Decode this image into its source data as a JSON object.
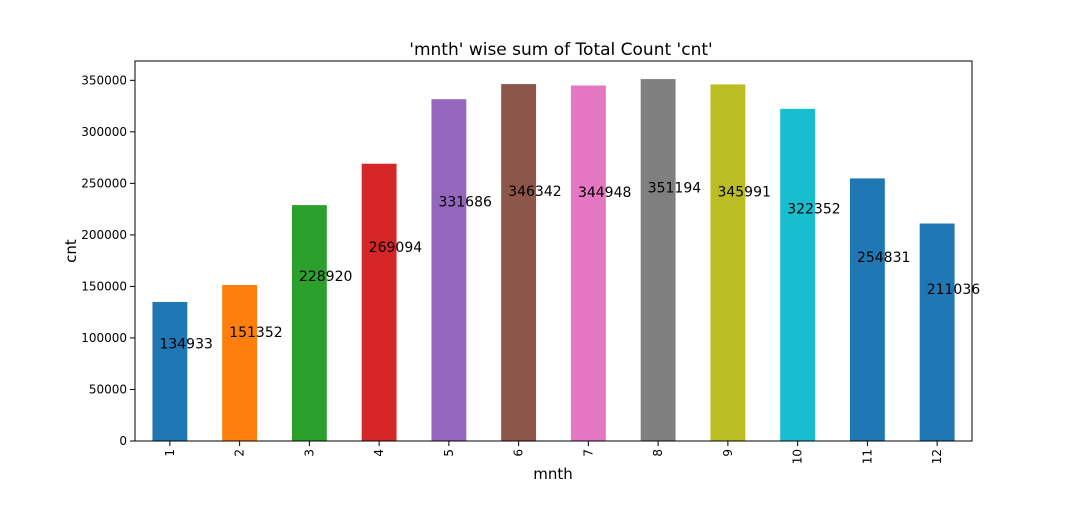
{
  "chart_data": {
    "type": "bar",
    "title": "'mnth' wise sum of Total Count 'cnt'",
    "xlabel": "mnth",
    "ylabel": "cnt",
    "categories": [
      "1",
      "2",
      "3",
      "4",
      "5",
      "6",
      "7",
      "8",
      "9",
      "10",
      "11",
      "12"
    ],
    "values": [
      134933,
      151352,
      228920,
      269094,
      331686,
      346342,
      344948,
      351194,
      345991,
      322352,
      254831,
      211036
    ],
    "data_labels": [
      "134933",
      "151352",
      "228920",
      "269094",
      "331686",
      "346342",
      "344948",
      "351194",
      "345991",
      "322352",
      "254831",
      "211036"
    ],
    "colors": [
      "#1f77b4",
      "#ff7f0e",
      "#2ca02c",
      "#d62728",
      "#9467bd",
      "#8c564b",
      "#e377c2",
      "#7f7f7f",
      "#bcbd22",
      "#17becf",
      "#1f77b4",
      "#1f77b4"
    ],
    "ylim": [
      0,
      368751
    ],
    "yticks": [
      0,
      50000,
      100000,
      150000,
      200000,
      250000,
      300000,
      350000
    ],
    "ytick_labels": [
      "0",
      "50000",
      "100000",
      "150000",
      "200000",
      "250000",
      "300000",
      "350000"
    ],
    "grid": false,
    "legend": "none"
  }
}
